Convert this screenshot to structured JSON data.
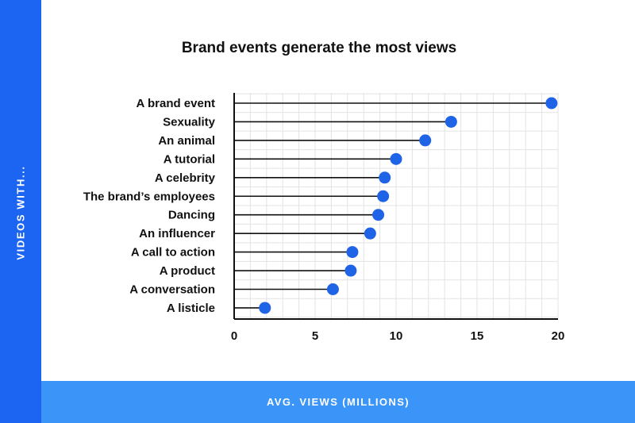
{
  "y_axis_title": "VIDEOS WITH...",
  "x_axis_title": "AVG. VIEWS (MILLIONS)",
  "colors": {
    "left_band": "#1c64f2",
    "bottom_band": "#3b94f7",
    "dot": "#1f63e6",
    "stem": "#111111",
    "grid": "#e3e3e3"
  },
  "chart_data": {
    "type": "lollipop",
    "title": "Brand events generate the most views",
    "xlabel": "AVG. VIEWS (MILLIONS)",
    "ylabel": "VIDEOS WITH...",
    "xlim": [
      0,
      20
    ],
    "xticks": [
      0,
      5,
      10,
      15,
      20
    ],
    "grid": true,
    "categories": [
      "A brand event",
      "Sexuality",
      "An animal",
      "A tutorial",
      "A celebrity",
      "The brand’s employees",
      "Dancing",
      "An influencer",
      "A call to action",
      "A product",
      "A conversation",
      "A listicle"
    ],
    "values": [
      19.6,
      13.4,
      11.8,
      10.0,
      9.3,
      9.2,
      8.9,
      8.4,
      7.3,
      7.2,
      6.1,
      1.9
    ]
  }
}
